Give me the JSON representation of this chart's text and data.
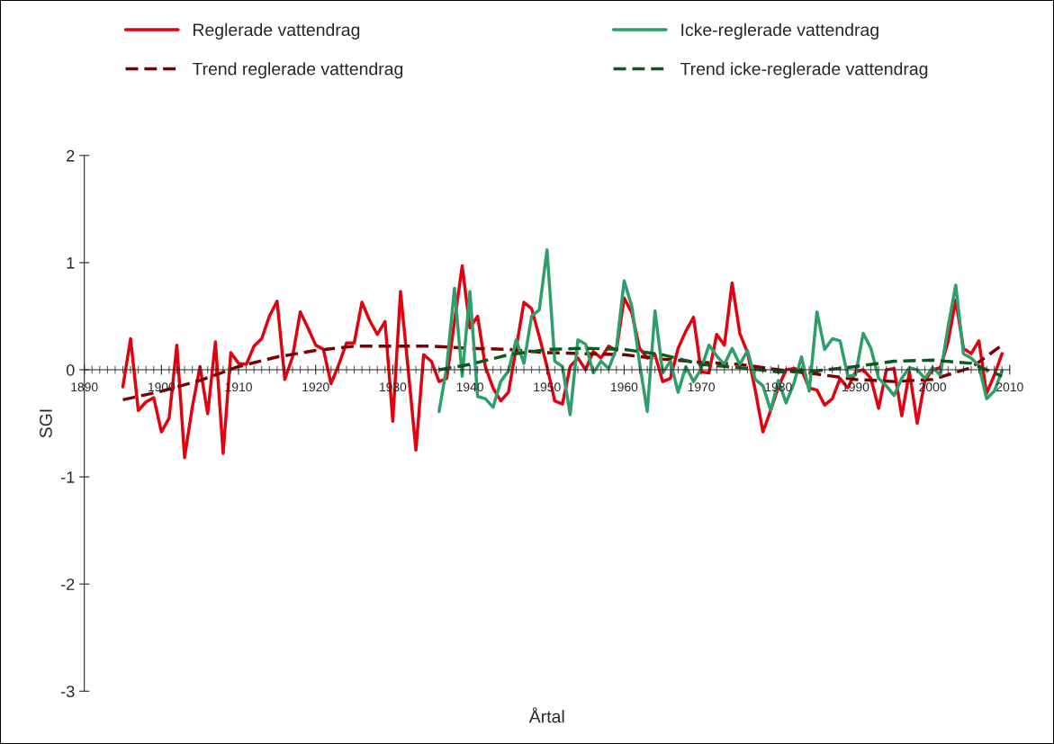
{
  "chart_data": {
    "type": "line",
    "xlabel": "Årtal",
    "ylabel": "SGI",
    "xlim": [
      1890,
      2010
    ],
    "xticks": [
      1890,
      1900,
      1910,
      1920,
      1930,
      1940,
      1950,
      1960,
      1970,
      1980,
      1990,
      2000,
      2010
    ],
    "ylim": [
      -3,
      2
    ],
    "yticks": [
      -3,
      -2,
      -1,
      0,
      1,
      2
    ],
    "grid": false,
    "legend": "top",
    "marker": "none",
    "series": [
      {
        "name": "Reglerade vattendrag",
        "color": "#e3000f",
        "line_style": "solid",
        "x": [
          1895,
          1896,
          1897,
          1898,
          1899,
          1900,
          1901,
          1902,
          1903,
          1904,
          1905,
          1906,
          1907,
          1908,
          1909,
          1910,
          1911,
          1912,
          1913,
          1914,
          1915,
          1916,
          1917,
          1918,
          1919,
          1920,
          1921,
          1922,
          1923,
          1924,
          1925,
          1926,
          1927,
          1928,
          1929,
          1930,
          1931,
          1932,
          1933,
          1934,
          1935,
          1936,
          1937,
          1938,
          1939,
          1940,
          1941,
          1942,
          1943,
          1944,
          1945,
          1946,
          1947,
          1948,
          1949,
          1950,
          1951,
          1952,
          1953,
          1954,
          1955,
          1956,
          1957,
          1958,
          1959,
          1960,
          1961,
          1962,
          1963,
          1964,
          1965,
          1966,
          1967,
          1968,
          1969,
          1970,
          1971,
          1972,
          1973,
          1974,
          1975,
          1976,
          1977,
          1978,
          1979,
          1980,
          1981,
          1982,
          1983,
          1984,
          1985,
          1986,
          1987,
          1988,
          1989,
          1990,
          1991,
          1992,
          1993,
          1994,
          1995,
          1996,
          1997,
          1998,
          1999,
          2000,
          2001,
          2002,
          2003,
          2004,
          2005,
          2006,
          2007,
          2008,
          2009
        ],
        "values": [
          -0.16,
          0.29,
          -0.38,
          -0.3,
          -0.26,
          -0.58,
          -0.45,
          0.23,
          -0.82,
          -0.35,
          0.03,
          -0.41,
          0.26,
          -0.78,
          0.16,
          0.06,
          0.05,
          0.22,
          0.29,
          0.5,
          0.64,
          -0.09,
          0.12,
          0.54,
          0.39,
          0.23,
          0.19,
          -0.13,
          0.05,
          0.25,
          0.25,
          0.63,
          0.46,
          0.33,
          0.45,
          -0.48,
          0.73,
          0.0,
          -0.75,
          0.14,
          0.08,
          -0.11,
          -0.08,
          0.45,
          0.97,
          0.39,
          0.5,
          0.03,
          -0.17,
          -0.29,
          -0.21,
          0.2,
          0.63,
          0.57,
          0.31,
          0.03,
          -0.29,
          -0.32,
          0.03,
          0.11,
          0.0,
          0.17,
          0.11,
          0.22,
          0.18,
          0.67,
          0.53,
          0.2,
          0.11,
          0.14,
          -0.11,
          -0.08,
          0.2,
          0.36,
          0.49,
          -0.02,
          -0.03,
          0.33,
          0.23,
          0.81,
          0.34,
          0.16,
          -0.19,
          -0.58,
          -0.38,
          -0.16,
          0.0,
          0.01,
          0.0,
          -0.17,
          -0.19,
          -0.33,
          -0.27,
          -0.08,
          -0.17,
          -0.02,
          0.0,
          -0.08,
          -0.36,
          0.0,
          0.01,
          -0.43,
          -0.02,
          -0.5,
          -0.1,
          0.0,
          0.02,
          0.26,
          0.65,
          0.2,
          0.15,
          0.27,
          -0.22,
          -0.05,
          0.15
        ]
      },
      {
        "name": "Trend reglerade vattendrag",
        "color": "#7b0000",
        "line_style": "dashed",
        "x": [
          1895,
          1900,
          1905,
          1910,
          1915,
          1920,
          1925,
          1930,
          1935,
          1940,
          1945,
          1950,
          1955,
          1960,
          1965,
          1970,
          1975,
          1980,
          1985,
          1990,
          1995,
          2000,
          2005,
          2009
        ],
        "values": [
          -0.28,
          -0.2,
          -0.1,
          0.03,
          0.12,
          0.18,
          0.22,
          0.22,
          0.22,
          0.2,
          0.19,
          0.16,
          0.15,
          0.14,
          0.1,
          0.07,
          0.05,
          0.0,
          -0.04,
          -0.09,
          -0.11,
          -0.09,
          0.02,
          0.23
        ]
      },
      {
        "name": "Icke-reglerade vattendrag",
        "color": "#2e9e6a",
        "line_style": "solid",
        "x": [
          1936,
          1937,
          1938,
          1939,
          1940,
          1941,
          1942,
          1943,
          1944,
          1945,
          1946,
          1947,
          1948,
          1949,
          1950,
          1951,
          1952,
          1953,
          1954,
          1955,
          1956,
          1957,
          1958,
          1959,
          1960,
          1961,
          1962,
          1963,
          1964,
          1965,
          1966,
          1967,
          1968,
          1969,
          1970,
          1971,
          1972,
          1973,
          1974,
          1975,
          1976,
          1977,
          1978,
          1979,
          1980,
          1981,
          1982,
          1983,
          1984,
          1985,
          1986,
          1987,
          1988,
          1989,
          1990,
          1991,
          1992,
          1993,
          1994,
          1995,
          1996,
          1997,
          1998,
          1999,
          2000,
          2001,
          2002,
          2003,
          2004,
          2005,
          2006,
          2007,
          2008,
          2009
        ],
        "values": [
          -0.39,
          0.03,
          0.76,
          -0.06,
          0.73,
          -0.25,
          -0.27,
          -0.35,
          -0.11,
          -0.01,
          0.28,
          0.06,
          0.5,
          0.56,
          1.12,
          0.08,
          0.03,
          -0.42,
          0.28,
          0.24,
          -0.03,
          0.08,
          0.01,
          0.2,
          0.83,
          0.59,
          0.06,
          -0.39,
          0.55,
          -0.03,
          0.08,
          -0.21,
          0.03,
          -0.11,
          0.01,
          0.23,
          0.13,
          0.05,
          0.2,
          0.05,
          0.18,
          -0.09,
          -0.15,
          -0.38,
          -0.1,
          -0.31,
          -0.13,
          0.12,
          -0.2,
          0.54,
          0.19,
          0.29,
          0.27,
          -0.06,
          -0.05,
          0.34,
          0.2,
          -0.08,
          -0.15,
          -0.24,
          -0.08,
          0.02,
          0.0,
          -0.08,
          0.02,
          -0.05,
          0.4,
          0.79,
          0.15,
          0.11,
          0.04,
          -0.27,
          -0.2,
          -0.01
        ]
      },
      {
        "name": "Trend icke-reglerade vattendrag",
        "color": "#0b5a1f",
        "line_style": "dashed",
        "x": [
          1936,
          1940,
          1945,
          1950,
          1955,
          1960,
          1965,
          1970,
          1975,
          1980,
          1985,
          1990,
          1995,
          2000,
          2005,
          2009
        ],
        "values": [
          0.0,
          0.05,
          0.14,
          0.19,
          0.2,
          0.19,
          0.14,
          0.05,
          0.02,
          -0.02,
          -0.01,
          0.03,
          0.08,
          0.09,
          0.06,
          -0.06
        ]
      }
    ]
  }
}
